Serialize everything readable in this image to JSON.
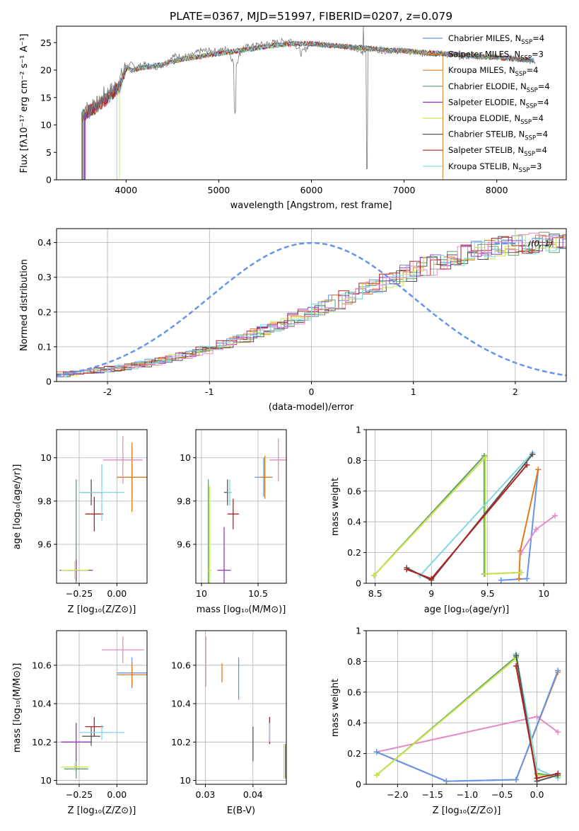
{
  "figure": {
    "title": "PLATE=0367, MJD=51997, FIBERID=0207, z=0.079"
  },
  "colors": {
    "blue": "#6495ed",
    "orange": "#e07b1a",
    "dgreen": "#5f9e6e",
    "purple": "#9932cc",
    "yellow": "#c8e64a",
    "dgray": "#555555",
    "red": "#b22222",
    "cyan": "#7fd8e0",
    "pink": "#e58ac5"
  },
  "chart_data": [
    {
      "id": "spectrum",
      "type": "line",
      "title": "PLATE=0367, MJD=51997, FIBERID=0207, z=0.079",
      "xlabel": "wavelength [Angstrom, rest frame]",
      "ylabel": "Flux [fλ10⁻¹⁷ erg cm⁻² s⁻¹ A⁻¹]",
      "xlim": [
        3250,
        8750
      ],
      "ylim": [
        0,
        28
      ],
      "xticks": [
        4000,
        5000,
        6000,
        7000,
        8000
      ],
      "yticks": [
        0,
        5,
        10,
        15,
        20,
        25
      ],
      "grid": false,
      "legend_position": "upper right",
      "legend": [
        "Chabrier MILES, N_SSP=4",
        "Salpeter MILES, N_SSP=3",
        "Kroupa MILES, N_SSP=4",
        "Chabrier ELODIE, N_SSP=4",
        "Salpeter ELODIE, N_SSP=4",
        "Kroupa ELODIE, N_SSP=4",
        "Chabrier STELIB, N_SSP=4",
        "Salpeter STELIB, N_SSP=4",
        "Kroupa STELIB, N_SSP=3"
      ],
      "data_series": {
        "name": "data",
        "x": [
          3530,
          3560,
          3600,
          3650,
          3700,
          3760,
          3820,
          3880,
          3940,
          3990,
          4050,
          4100,
          4200,
          4300,
          4400,
          4500,
          4600,
          4700,
          4800,
          4900,
          5000,
          5100,
          5175,
          5250,
          5400,
          5600,
          5800,
          5890,
          6000,
          6200,
          6400,
          6563,
          6600,
          6800,
          7000,
          7200,
          7400,
          7600,
          7800,
          8000,
          8200,
          8400
        ],
        "y": [
          11,
          13.5,
          12.5,
          14.5,
          13.5,
          15.5,
          16,
          17,
          18.5,
          20.5,
          21,
          20.5,
          21,
          20.5,
          21,
          22.5,
          22.5,
          22.5,
          23.5,
          23.5,
          23.5,
          24,
          20.5,
          24,
          24.5,
          25,
          25.5,
          23,
          25,
          24.5,
          24.5,
          23,
          24,
          23.5,
          23.5,
          23,
          23,
          22.5,
          22.5,
          22.5,
          22,
          21.5
        ]
      },
      "model_series": {
        "x": [
          3530,
          3600,
          3700,
          3800,
          3900,
          3940,
          4000,
          4050,
          4200,
          4400,
          4600,
          4800,
          5000,
          5200,
          5400,
          5600,
          5800,
          6000,
          6200,
          6400,
          6600,
          6800,
          7000,
          7200,
          7400,
          7600,
          7800,
          8000,
          8200,
          8400
        ],
        "y": [
          11.5,
          12.5,
          13.5,
          15,
          16.5,
          17,
          20.5,
          20,
          20.5,
          21,
          22,
          22.5,
          23,
          23.5,
          24,
          24.5,
          24.8,
          24.8,
          24.5,
          24.2,
          24,
          23.7,
          23.5,
          23.2,
          23,
          22.8,
          22.5,
          22.3,
          22,
          21.8
        ]
      },
      "model_edges": [
        3540,
        3520,
        3550,
        3530,
        3560,
        3930,
        3530,
        3550,
        3900
      ],
      "model_ends": [
        8400,
        7420,
        8400,
        8400,
        8400,
        8400,
        8400,
        8400,
        8400
      ]
    },
    {
      "id": "residuals",
      "type": "histogram",
      "xlabel": "(data-model)/error",
      "ylabel": "Normed distribution",
      "xlim": [
        -2.5,
        2.5
      ],
      "ylim": [
        0,
        0.44
      ],
      "xticks": [
        -2,
        -1,
        0,
        1,
        2
      ],
      "yticks": [
        0.0,
        0.1,
        0.2,
        0.3,
        0.4
      ],
      "grid": true,
      "legend": [
        "𝒩(0, 1)"
      ],
      "legend_position": "upper right",
      "bin_width": 0.1,
      "base": [
        0.021,
        0.023,
        0.026,
        0.029,
        0.032,
        0.036,
        0.04,
        0.045,
        0.05,
        0.055,
        0.061,
        0.068,
        0.075,
        0.082,
        0.09,
        0.099,
        0.108,
        0.117,
        0.127,
        0.137,
        0.148,
        0.159,
        0.17,
        0.182,
        0.193,
        0.205,
        0.217,
        0.229,
        0.241,
        0.253,
        0.265,
        0.277,
        0.289,
        0.3,
        0.311,
        0.322,
        0.332,
        0.342,
        0.351,
        0.36,
        0.368,
        0.375,
        0.381,
        0.387,
        0.391,
        0.395,
        0.397,
        0.399,
        0.399,
        0.399,
        0.399,
        0.397,
        0.395,
        0.391,
        0.387,
        0.381,
        0.375,
        0.368,
        0.36,
        0.351,
        0.342,
        0.332,
        0.322,
        0.311,
        0.3,
        0.289,
        0.277,
        0.265,
        0.253,
        0.241,
        0.229,
        0.217,
        0.205,
        0.193,
        0.182,
        0.17,
        0.159,
        0.148,
        0.137,
        0.127,
        0.117,
        0.108,
        0.099,
        0.09,
        0.082,
        0.075,
        0.068,
        0.061,
        0.055,
        0.05,
        0.045,
        0.04,
        0.036,
        0.032,
        0.029,
        0.026,
        0.023,
        0.021,
        0.019,
        0.017
      ]
    },
    {
      "id": "age-vs-Z",
      "type": "errorbar",
      "xlabel": "Z [log₁₀(Z/Z⊙)]",
      "ylabel": "age  [log₁₀(age/yr)]",
      "xlim": [
        -0.4,
        0.2
      ],
      "ylim": [
        9.42,
        10.13
      ],
      "xticks": [
        -0.25,
        0.0
      ],
      "xticklabels": [
        "−0.25",
        "0.00"
      ],
      "yticks": [
        9.6,
        9.8,
        10.0
      ],
      "grid": true,
      "points": [
        {
          "c": "blue",
          "x": 0.1,
          "xe": 0.1,
          "y": 9.91,
          "ye": 0.09
        },
        {
          "c": "orange",
          "x": 0.1,
          "xe": 0.1,
          "y": 9.91,
          "ye": 0.16
        },
        {
          "c": "dgreen",
          "x": -0.27,
          "xe": 0.08,
          "y": 9.48,
          "ye": 0.42
        },
        {
          "c": "purple",
          "x": -0.27,
          "xe": 0.11,
          "y": 9.48,
          "ye": 0.05
        },
        {
          "c": "yellow",
          "x": -0.28,
          "xe": 0.09,
          "y": 9.48,
          "ye": 0.04
        },
        {
          "c": "dgray",
          "x": -0.17,
          "xe": 0.07,
          "y": 9.84,
          "ye": 0.06
        },
        {
          "c": "red",
          "x": -0.15,
          "xe": 0.06,
          "y": 9.74,
          "ye": 0.08
        },
        {
          "c": "cyan",
          "x": -0.1,
          "xe": 0.15,
          "y": 9.84,
          "ye": 0.13
        },
        {
          "c": "pink",
          "x": 0.04,
          "xe": 0.13,
          "y": 9.99,
          "ye": 0.11
        }
      ]
    },
    {
      "id": "age-vs-mass",
      "type": "errorbar",
      "xlabel": "mass [log₁₀(M/M⊙)]",
      "ylabel": "",
      "xlim": [
        9.95,
        10.75
      ],
      "ylim": [
        9.42,
        10.13
      ],
      "xticks": [
        10.0,
        10.5
      ],
      "yticks": [
        9.6,
        9.8,
        10.0
      ],
      "grid": true,
      "points": [
        {
          "c": "blue",
          "x": 10.55,
          "xe": 0.08,
          "y": 9.91,
          "ye": 0.09
        },
        {
          "c": "orange",
          "x": 10.56,
          "xe": 0.05,
          "y": 9.91,
          "ye": 0.1
        },
        {
          "c": "dgreen",
          "x": 10.06,
          "xe": 0.0,
          "y": 9.48,
          "ye": 0.42
        },
        {
          "c": "purple",
          "x": 10.2,
          "xe": 0.06,
          "y": 9.48,
          "ye": 0.2
        },
        {
          "c": "yellow",
          "x": 10.07,
          "xe": 0.02,
          "y": 9.48,
          "ye": 0.39
        },
        {
          "c": "dgray",
          "x": 10.23,
          "xe": 0.03,
          "y": 9.84,
          "ye": 0.06
        },
        {
          "c": "red",
          "x": 10.28,
          "xe": 0.05,
          "y": 9.74,
          "ye": 0.07
        },
        {
          "c": "cyan",
          "x": 10.25,
          "xe": 0.02,
          "y": 9.84,
          "ye": 0.06
        },
        {
          "c": "pink",
          "x": 10.68,
          "xe": 0.08,
          "y": 9.99,
          "ye": 0.1
        }
      ]
    },
    {
      "id": "mass-weight-vs-age",
      "type": "line",
      "xlabel": "age  [log₁₀(age/yr)]",
      "ylabel": "mass weight",
      "xlim": [
        8.42,
        10.2
      ],
      "ylim": [
        0,
        1
      ],
      "xticks": [
        8.5,
        9.0,
        9.5,
        10.0
      ],
      "yticks": [
        0.0,
        0.2,
        0.4,
        0.6,
        0.8,
        1.0
      ],
      "grid": true,
      "series": [
        {
          "c": "blue",
          "x": [
            9.62,
            9.85,
            9.95
          ],
          "y": [
            0.02,
            0.03,
            0.74
          ]
        },
        {
          "c": "orange",
          "x": [
            9.78,
            9.79,
            9.95
          ],
          "y": [
            0.03,
            0.21,
            0.74
          ]
        },
        {
          "c": "pink",
          "x": [
            9.8,
            9.93,
            10.1
          ],
          "y": [
            0.2,
            0.35,
            0.44
          ]
        },
        {
          "c": "dgreen",
          "x": [
            8.49,
            9.47,
            9.47,
            9.8
          ],
          "y": [
            0.05,
            0.83,
            0.06,
            0.07
          ]
        },
        {
          "c": "yellow",
          "x": [
            8.49,
            9.48,
            9.48,
            9.8
          ],
          "y": [
            0.05,
            0.82,
            0.06,
            0.07
          ]
        },
        {
          "c": "cyan",
          "x": [
            8.9,
            9.9
          ],
          "y": [
            0.05,
            0.85
          ]
        },
        {
          "c": "dgray",
          "x": [
            8.78,
            9.0,
            9.9
          ],
          "y": [
            0.1,
            0.02,
            0.84
          ]
        },
        {
          "c": "red",
          "x": [
            8.78,
            9.0,
            9.85
          ],
          "y": [
            0.09,
            0.03,
            0.77
          ]
        }
      ]
    },
    {
      "id": "mass-vs-Z",
      "type": "errorbar",
      "xlabel": "Z [log₁₀(Z/Z⊙)]",
      "ylabel": "mass [log₁₀(M/M⊙)]",
      "xlim": [
        -0.4,
        0.2
      ],
      "ylim": [
        9.98,
        10.78
      ],
      "xticks": [
        -0.25,
        0.0
      ],
      "xticklabels": [
        "−0.25",
        "0.00"
      ],
      "yticks": [
        10.0,
        10.2,
        10.4,
        10.6
      ],
      "grid": true,
      "points": [
        {
          "c": "blue",
          "x": 0.1,
          "xe": 0.1,
          "y": 10.56,
          "ye": 0.08
        },
        {
          "c": "orange",
          "x": 0.1,
          "xe": 0.1,
          "y": 10.55,
          "ye": 0.06
        },
        {
          "c": "dgreen",
          "x": -0.27,
          "xe": 0.08,
          "y": 10.06,
          "ye": 0.05
        },
        {
          "c": "purple",
          "x": -0.27,
          "xe": 0.1,
          "y": 10.2,
          "ye": 0.1
        },
        {
          "c": "yellow",
          "x": -0.28,
          "xe": 0.09,
          "y": 10.07,
          "ye": 0.02
        },
        {
          "c": "dgray",
          "x": -0.17,
          "xe": 0.06,
          "y": 10.23,
          "ye": 0.05
        },
        {
          "c": "red",
          "x": -0.15,
          "xe": 0.06,
          "y": 10.28,
          "ye": 0.05
        },
        {
          "c": "cyan",
          "x": -0.1,
          "xe": 0.15,
          "y": 10.25,
          "ye": 0.04
        },
        {
          "c": "pink",
          "x": 0.04,
          "xe": 0.14,
          "y": 10.68,
          "ye": 0.07
        }
      ]
    },
    {
      "id": "mass-vs-ebv",
      "type": "errorbar",
      "xlabel": "E(B-V)",
      "ylabel": "",
      "xlim": [
        0.028,
        0.047
      ],
      "ylim": [
        9.98,
        10.78
      ],
      "xticks": [
        0.03,
        0.04
      ],
      "yticks": [
        10.0,
        10.2,
        10.4,
        10.6
      ],
      "grid": true,
      "points": [
        {
          "c": "blue",
          "x": 0.037,
          "xe": 0,
          "y": 10.53,
          "ye": 0.11
        },
        {
          "c": "orange",
          "x": 0.0335,
          "xe": 0,
          "y": 10.56,
          "ye": 0.05
        },
        {
          "c": "dgreen",
          "x": 0.0468,
          "xe": 0,
          "y": 10.1,
          "ye": 0.09
        },
        {
          "c": "purple",
          "x": 0.0435,
          "xe": 0,
          "y": 10.26,
          "ye": 0.07
        },
        {
          "c": "yellow",
          "x": 0.0465,
          "xe": 0,
          "y": 10.1,
          "ye": 0.09
        },
        {
          "c": "dgray",
          "x": 0.04,
          "xe": 0,
          "y": 10.19,
          "ye": 0.09
        },
        {
          "c": "red",
          "x": 0.0435,
          "xe": 0,
          "y": 10.26,
          "ye": 0.07
        },
        {
          "c": "cyan",
          "x": 0.0435,
          "xe": 0,
          "y": 10.25,
          "ye": 0.05
        },
        {
          "c": "pink",
          "x": 0.0301,
          "xe": 0,
          "y": 10.62,
          "ye": 0.13
        }
      ]
    },
    {
      "id": "mass-weight-vs-Z",
      "type": "line",
      "xlabel": "Z [log₁₀(Z/Z⊙)]",
      "ylabel": "mass weight",
      "xlim": [
        -2.45,
        0.42
      ],
      "ylim": [
        0,
        1
      ],
      "xticks": [
        -2.0,
        -1.5,
        -1.0,
        -0.5,
        0.0
      ],
      "xticklabels": [
        "−2.0",
        "−1.5",
        "−1.0",
        "−0.5",
        "0.0"
      ],
      "yticks": [
        0.0,
        0.2,
        0.4,
        0.6,
        0.8,
        1.0
      ],
      "grid": true,
      "series": [
        {
          "c": "pink",
          "x": [
            -2.3,
            0.0,
            0.3
          ],
          "y": [
            0.21,
            0.44,
            0.34
          ]
        },
        {
          "c": "orange",
          "x": [
            -2.3,
            -1.3,
            -0.3,
            0.3
          ],
          "y": [
            0.21,
            0.02,
            0.03,
            0.73
          ]
        },
        {
          "c": "blue",
          "x": [
            -2.3,
            -1.3,
            -0.3,
            0.3
          ],
          "y": [
            0.21,
            0.02,
            0.03,
            0.74
          ]
        },
        {
          "c": "dgreen",
          "x": [
            -2.3,
            -0.3,
            0.0,
            0.3
          ],
          "y": [
            0.06,
            0.83,
            0.07,
            0.05
          ]
        },
        {
          "c": "yellow",
          "x": [
            -2.3,
            -0.3,
            0.0,
            0.3
          ],
          "y": [
            0.06,
            0.82,
            0.06,
            0.05
          ]
        },
        {
          "c": "cyan",
          "x": [
            -0.3,
            0.0,
            0.3
          ],
          "y": [
            0.85,
            0.1,
            0.04
          ]
        },
        {
          "c": "dgray",
          "x": [
            -0.3,
            0.0,
            0.3
          ],
          "y": [
            0.84,
            0.02,
            0.06
          ]
        },
        {
          "c": "red",
          "x": [
            -0.3,
            0.0,
            0.3
          ],
          "y": [
            0.77,
            0.04,
            0.07
          ]
        }
      ]
    }
  ]
}
